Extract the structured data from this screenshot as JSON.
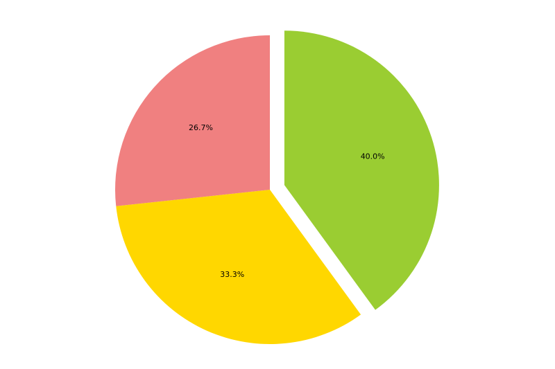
{
  "chart_data": {
    "type": "pie",
    "title": "",
    "slices": [
      {
        "value": 40.0,
        "label": "40.0%",
        "color": "#9acd32",
        "exploded": true
      },
      {
        "value": 33.3,
        "label": "33.3%",
        "color": "#ffd700",
        "exploded": false
      },
      {
        "value": 26.7,
        "label": "26.7%",
        "color": "#f08080",
        "exploded": false
      }
    ],
    "start_angle_deg": 90,
    "direction": "clockwise",
    "legend": "none"
  }
}
